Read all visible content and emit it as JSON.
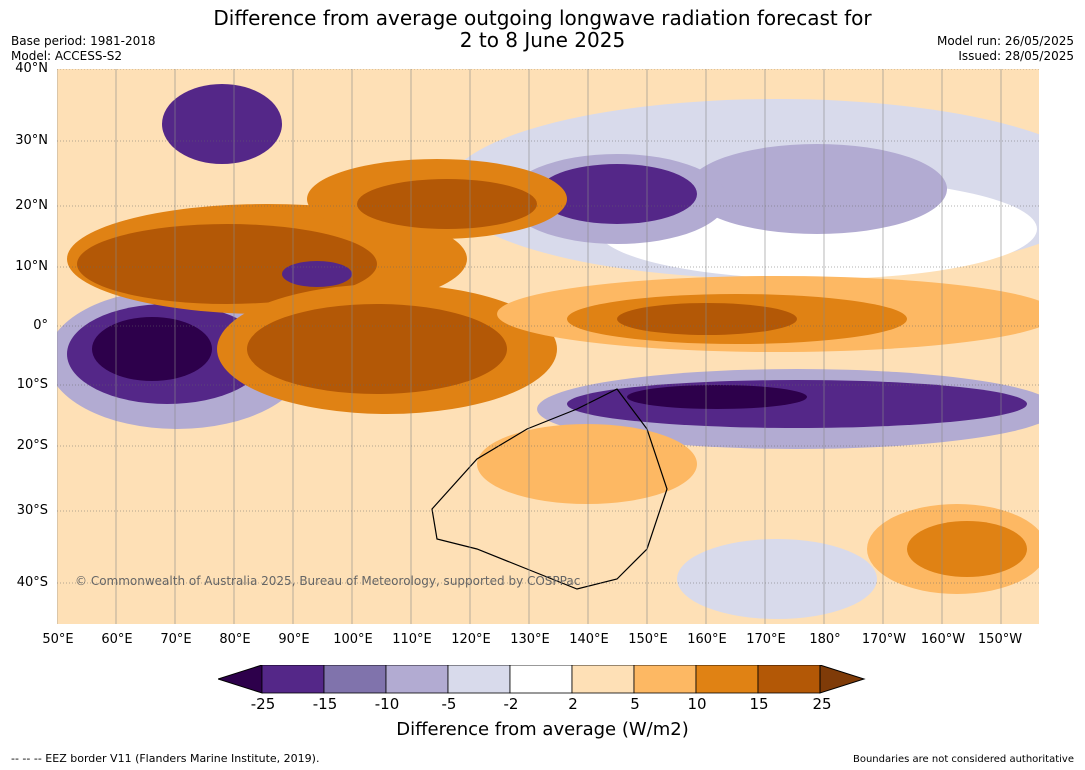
{
  "title_line1": "Difference from average outgoing longwave radiation forecast for",
  "title_line2": "2 to 8 June 2025",
  "base_period": "Base period: 1981-2018",
  "model": "Model: ACCESS-S2",
  "model_run": "Model run: 26/05/2025",
  "issued": "Issued: 28/05/2025",
  "lat_labels": [
    "40°N",
    "30°N",
    "20°N",
    "10°N",
    "0°",
    "10°S",
    "20°S",
    "30°S",
    "40°S"
  ],
  "lon_labels": [
    "50°E",
    "60°E",
    "70°E",
    "80°E",
    "90°E",
    "100°E",
    "110°E",
    "120°E",
    "130°E",
    "140°E",
    "150°E",
    "160°E",
    "170°E",
    "180°",
    "170°W",
    "160°W",
    "150°W"
  ],
  "copyright": "© Commonwealth of Australia 2025, Bureau of Meteorology, supported by COSPPac",
  "colorbar": {
    "ticks": [
      "-25",
      "-15",
      "-10",
      "-5",
      "-2",
      "2",
      "5",
      "10",
      "15",
      "25"
    ],
    "colors": [
      "#2d004b",
      "#542788",
      "#8073ac",
      "#b2abd2",
      "#d8daeb",
      "#ffffff",
      "#fee0b6",
      "#fdb863",
      "#e08214",
      "#b35806",
      "#7f3b08"
    ],
    "label": "Difference from average (W/m2)"
  },
  "footer_left": "-- -- -- EEZ border V11 (Flanders Marine Institute, 2019).",
  "footer_right": "Boundaries are not considered authoritative"
}
